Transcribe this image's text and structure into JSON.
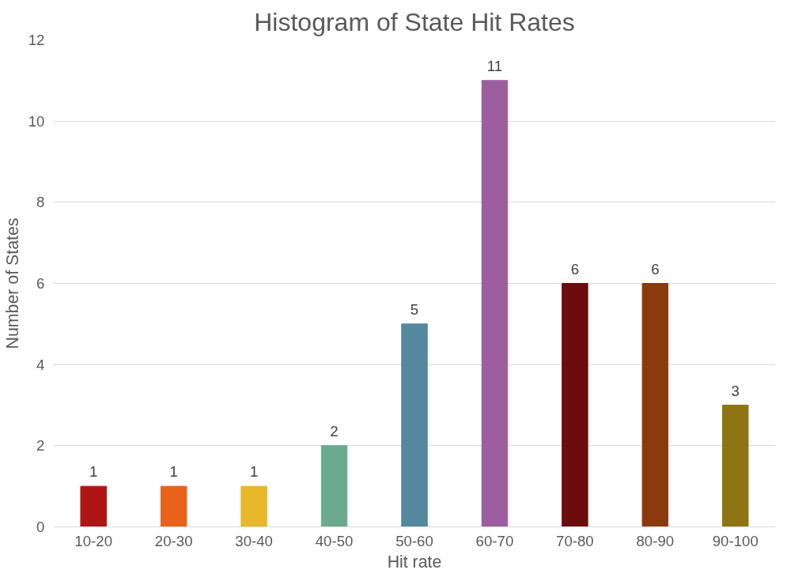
{
  "chart_data": {
    "type": "bar",
    "title": "Histogram of State Hit Rates",
    "xlabel": "Hit rate",
    "ylabel": "Number of States",
    "categories": [
      "10-20",
      "20-30",
      "30-40",
      "40-50",
      "50-60",
      "60-70",
      "70-80",
      "80-90",
      "90-100"
    ],
    "values": [
      1,
      1,
      1,
      2,
      5,
      11,
      6,
      6,
      3
    ],
    "colors": [
      "#b01515",
      "#e8621a",
      "#e6b82a",
      "#6aab8e",
      "#54889c",
      "#9c5e9e",
      "#6b0d0d",
      "#8b3a0e",
      "#8f7414"
    ],
    "ylim": [
      0,
      12
    ],
    "yticks": [
      0,
      2,
      4,
      6,
      8,
      10,
      12
    ],
    "grid": "y",
    "data_labels": true
  }
}
